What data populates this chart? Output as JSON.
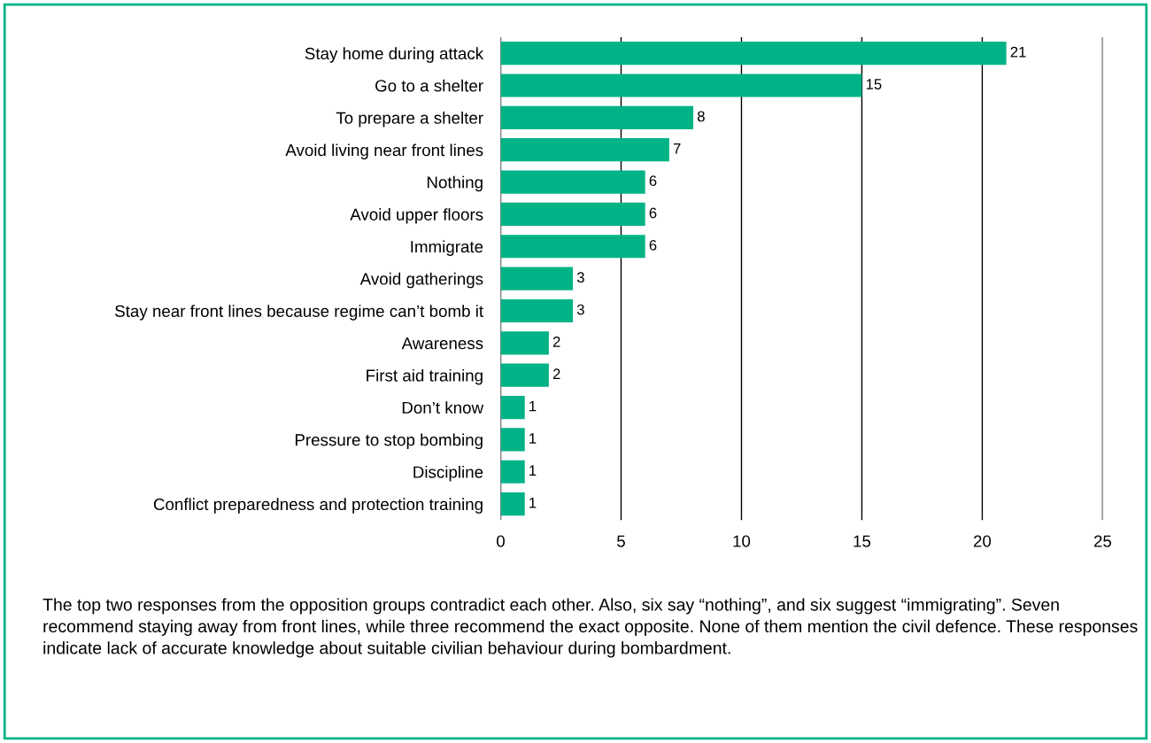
{
  "chart_data": {
    "type": "bar",
    "orientation": "horizontal",
    "categories": [
      "Stay home during attack",
      "Go to a shelter",
      "To prepare a shelter",
      "Avoid living near front lines",
      "Nothing",
      "Avoid upper floors",
      "Immigrate",
      "Avoid gatherings",
      "Stay near front lines because regime can’t bomb it",
      "Awareness",
      "First aid training",
      "Don’t know",
      "Pressure to stop bombing",
      "Discipline",
      "Conflict preparedness and protection training"
    ],
    "values": [
      21,
      15,
      8,
      7,
      6,
      6,
      6,
      3,
      3,
      2,
      2,
      1,
      1,
      1,
      1
    ],
    "color": "#00b386",
    "xlim": [
      0,
      25
    ],
    "xticks": [
      0,
      5,
      10,
      15,
      20,
      25
    ],
    "grid": "x",
    "data_labels": true,
    "annotations": [
      "The top two responses from the opposition groups contradict each other. Also, six say “nothing”, and six suggest “immigrating”. Seven recommend staying away from front lines, while three recommend the exact opposite. None of them mention the civil defence. These responses indicate lack of accurate knowledge about suitable civilian behaviour during bombardment."
    ]
  }
}
